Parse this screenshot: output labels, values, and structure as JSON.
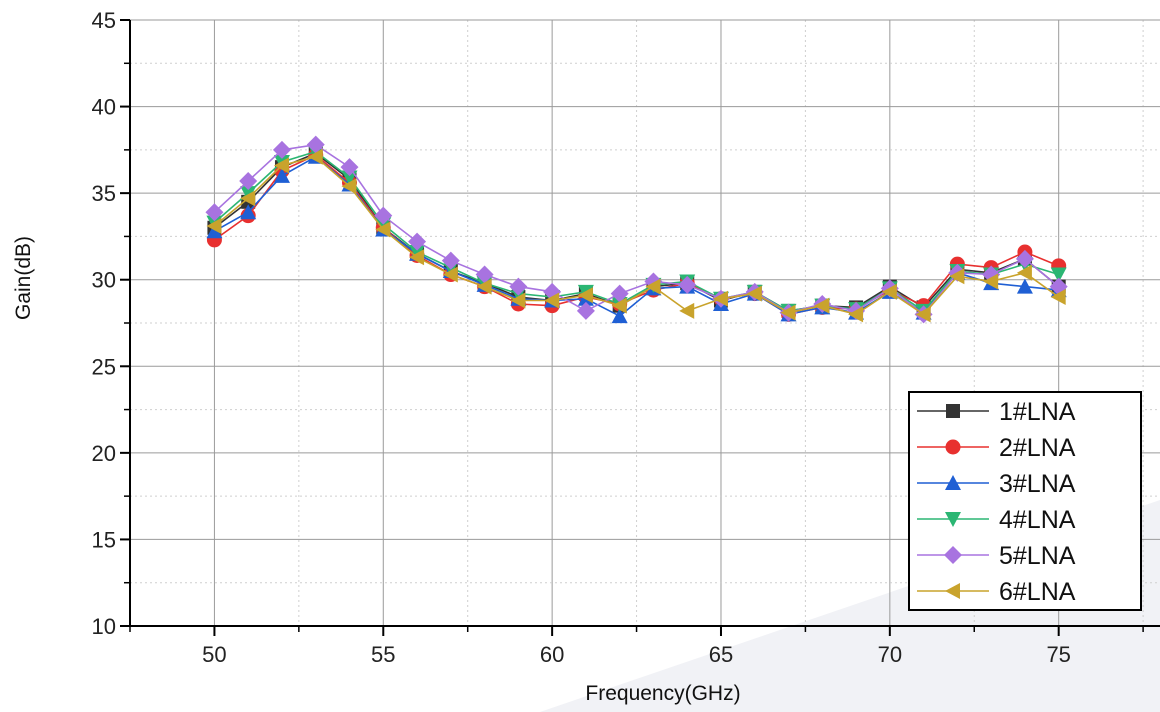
{
  "chart_data": {
    "type": "line",
    "xlabel": "Frequency(GHz)",
    "ylabel": "Gain(dB)",
    "xlim": [
      47.5,
      78
    ],
    "ylim": [
      10,
      45
    ],
    "xticks": [
      50,
      55,
      60,
      65,
      70,
      75
    ],
    "yticks": [
      10,
      15,
      20,
      25,
      30,
      35,
      40,
      45
    ],
    "grid": true,
    "legend_position": "bottom-right",
    "x": [
      50,
      51,
      52,
      53,
      54,
      55,
      56,
      57,
      58,
      59,
      60,
      61,
      62,
      63,
      64,
      65,
      66,
      67,
      68,
      69,
      70,
      71,
      72,
      73,
      74,
      75
    ],
    "series": [
      {
        "name": "1#LNA",
        "color": "#333333",
        "marker": "square",
        "values": [
          33.0,
          34.5,
          36.5,
          37.3,
          35.8,
          33.0,
          31.5,
          30.5,
          29.8,
          29.0,
          28.8,
          29.2,
          28.5,
          29.6,
          29.8,
          28.8,
          29.3,
          28.2,
          28.5,
          28.4,
          29.6,
          28.4,
          30.6,
          30.4,
          31.2,
          29.6
        ]
      },
      {
        "name": "2#LNA",
        "color": "#e8302f",
        "marker": "circle",
        "values": [
          32.3,
          33.7,
          36.3,
          37.2,
          35.6,
          33.0,
          31.4,
          30.3,
          29.6,
          28.6,
          28.5,
          29.0,
          28.6,
          29.4,
          29.8,
          28.9,
          29.2,
          28.0,
          28.4,
          28.3,
          29.4,
          28.5,
          30.9,
          30.7,
          31.6,
          30.8
        ]
      },
      {
        "name": "3#LNA",
        "color": "#1f5fd4",
        "marker": "triangle-up",
        "values": [
          32.8,
          33.9,
          36.0,
          37.1,
          35.5,
          32.9,
          31.5,
          30.5,
          29.7,
          28.9,
          28.8,
          28.9,
          27.9,
          29.5,
          29.6,
          28.6,
          29.2,
          28.0,
          28.4,
          28.1,
          29.3,
          28.1,
          30.4,
          29.8,
          29.6,
          29.4
        ]
      },
      {
        "name": "4#LNA",
        "color": "#2bb673",
        "marker": "triangle-down",
        "values": [
          33.3,
          35.0,
          36.8,
          37.4,
          35.9,
          33.2,
          31.6,
          30.7,
          29.8,
          29.2,
          29.0,
          29.3,
          28.6,
          29.7,
          29.9,
          28.9,
          29.3,
          28.2,
          28.5,
          28.3,
          29.5,
          28.2,
          30.5,
          30.3,
          30.9,
          30.3
        ]
      },
      {
        "name": "5#LNA",
        "color": "#a873e0",
        "marker": "diamond",
        "values": [
          33.9,
          35.7,
          37.5,
          37.8,
          36.5,
          33.7,
          32.2,
          31.1,
          30.3,
          29.6,
          29.3,
          28.2,
          29.2,
          29.9,
          29.7,
          28.9,
          29.3,
          28.1,
          28.6,
          28.2,
          29.5,
          28.0,
          30.4,
          30.3,
          31.2,
          29.6
        ]
      },
      {
        "name": "6#LNA",
        "color": "#c9a32c",
        "marker": "triangle-left",
        "values": [
          33.1,
          34.7,
          36.6,
          37.1,
          35.4,
          32.9,
          31.3,
          30.3,
          29.6,
          28.8,
          28.8,
          29.1,
          28.5,
          29.6,
          28.2,
          28.9,
          29.2,
          28.1,
          28.5,
          28.0,
          29.3,
          28.0,
          30.2,
          29.9,
          30.4,
          29.0
        ]
      }
    ]
  }
}
